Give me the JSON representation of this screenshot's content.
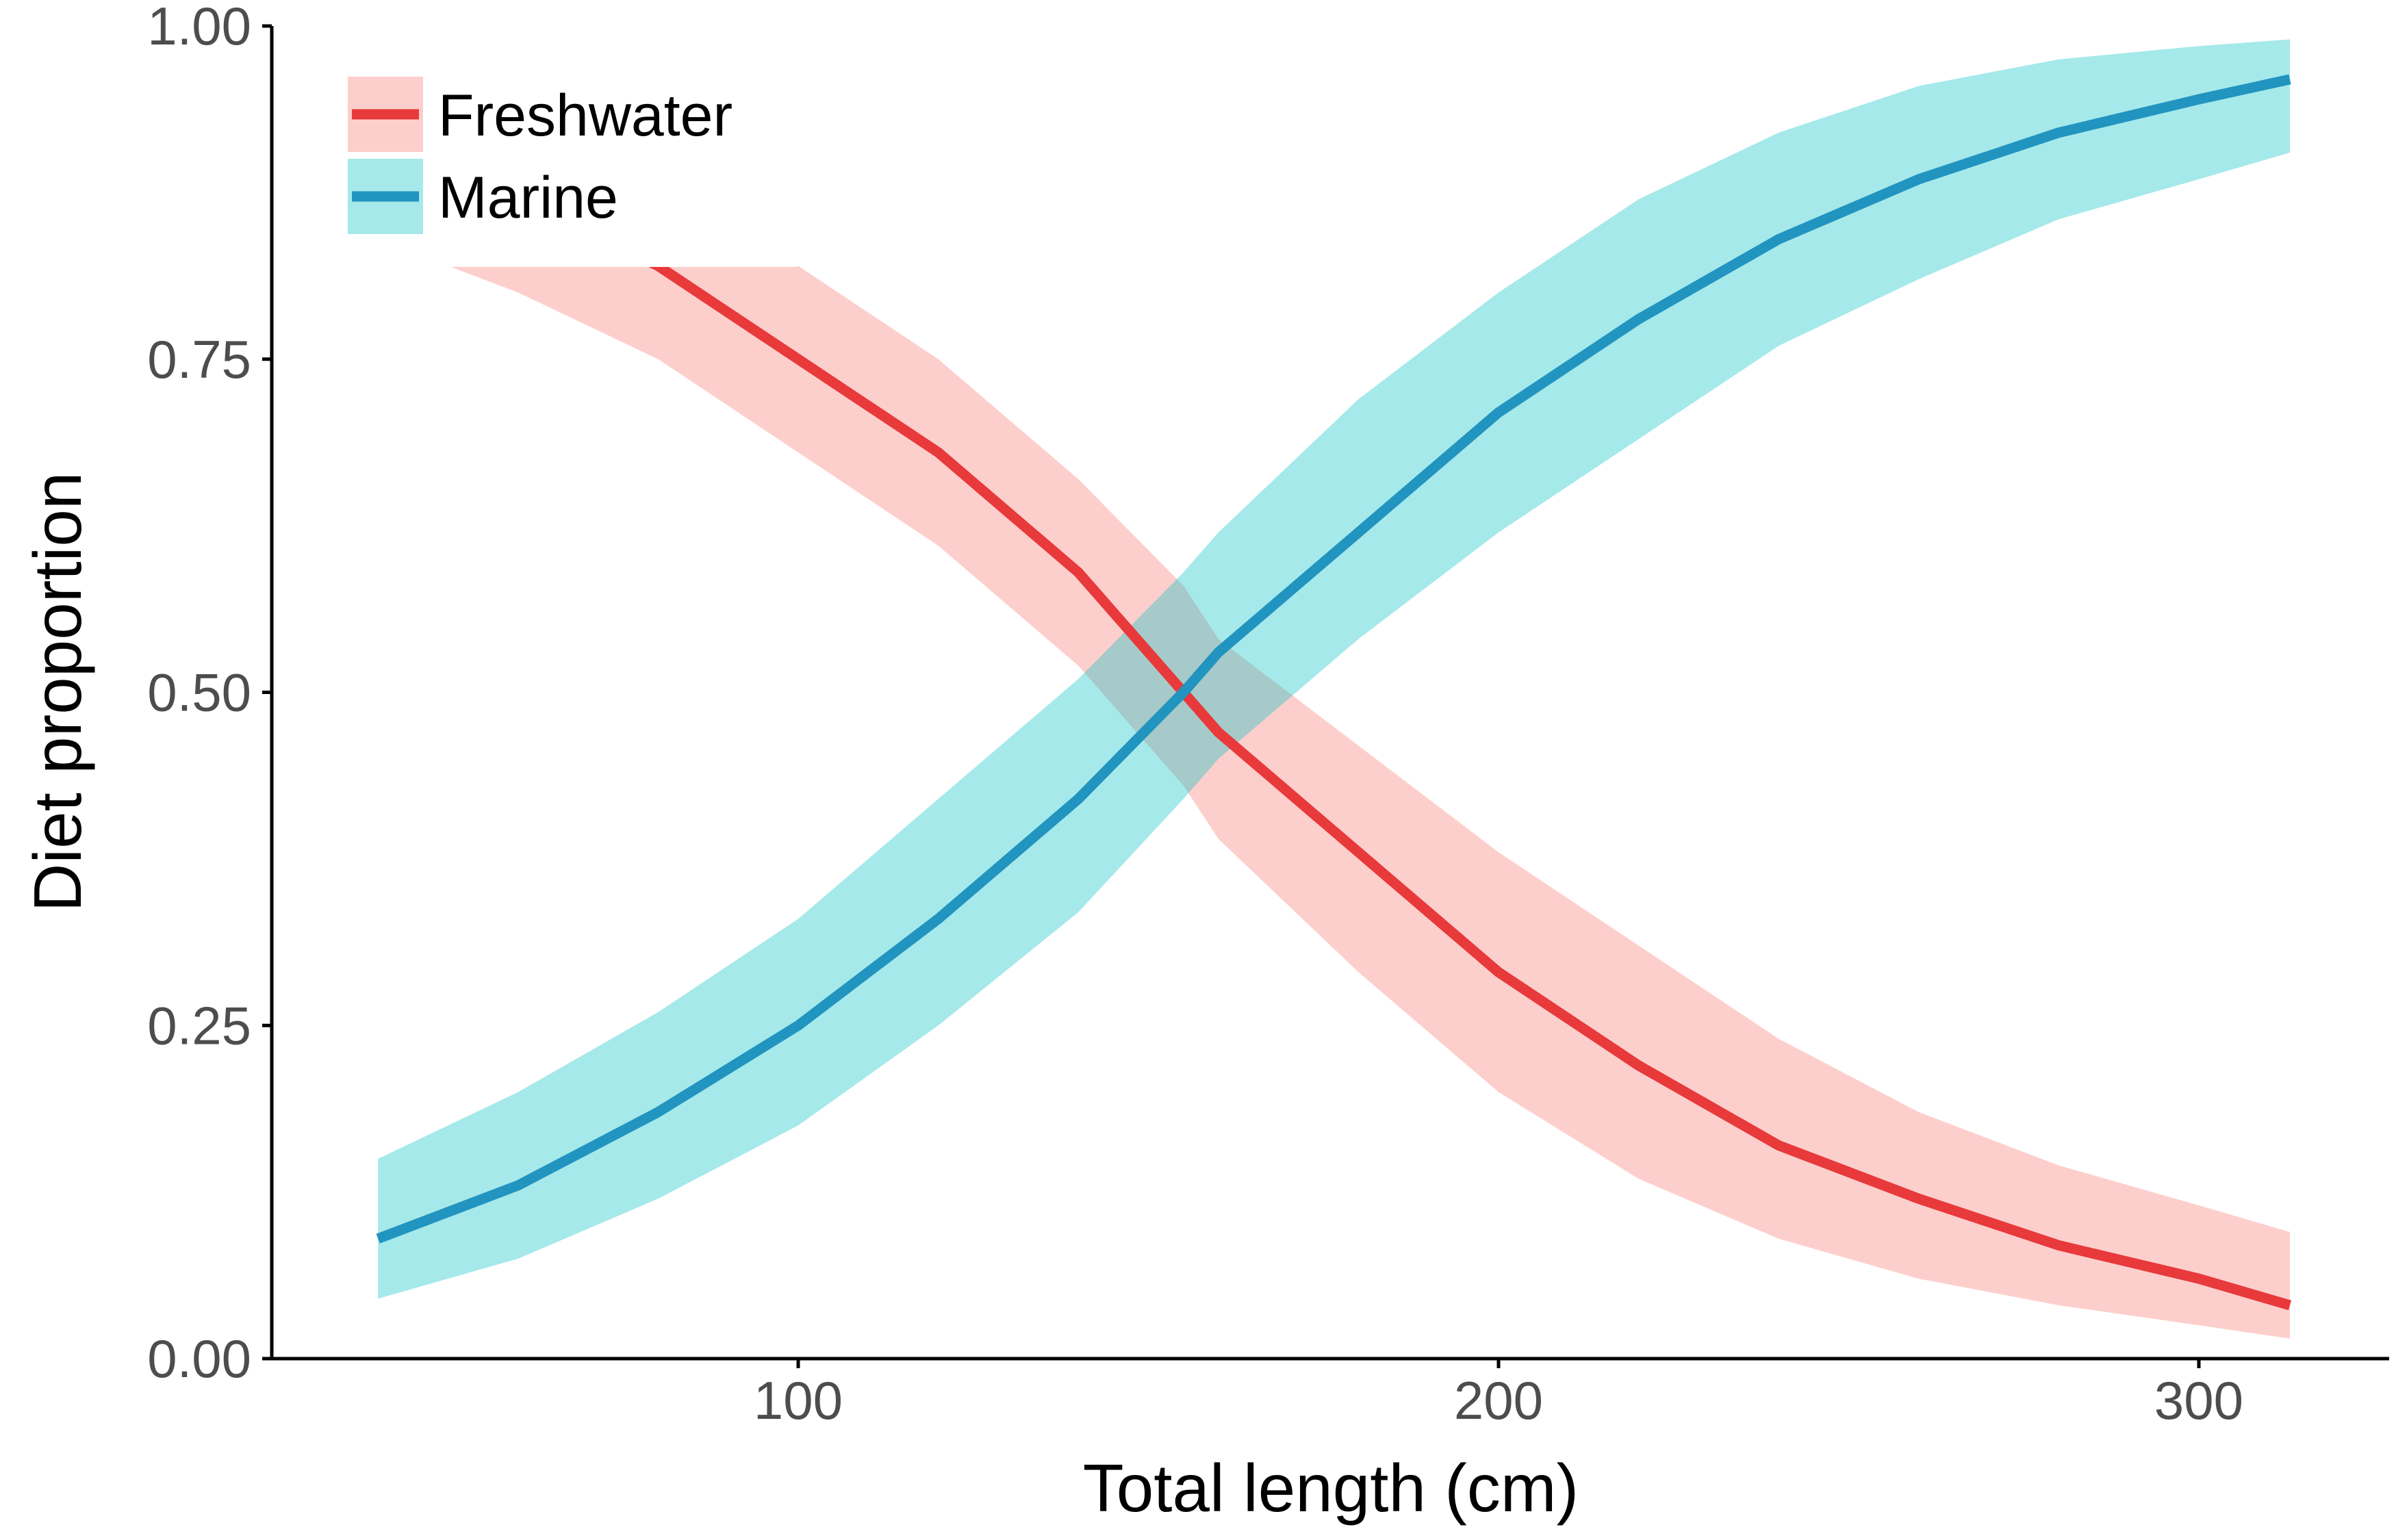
{
  "chart_data": {
    "type": "line",
    "title": "",
    "xlabel": "Total length (cm)",
    "ylabel": "Diet proportion",
    "xlim": [
      25,
      325
    ],
    "ylim": [
      0,
      1
    ],
    "xticks": [
      100,
      200,
      300
    ],
    "xtick_labels": [
      "100",
      "200",
      "300"
    ],
    "yticks": [
      0,
      0.25,
      0.5,
      0.75,
      1
    ],
    "ytick_labels": [
      "0.00",
      "0.25",
      "0.50",
      "0.75",
      "1.00"
    ],
    "grid": false,
    "legend_position": "top-left",
    "series": [
      {
        "name": "Freshwater",
        "color": "#e8393b",
        "band_color": "#f8766d",
        "x": [
          40,
          60,
          80,
          100,
          120,
          140,
          155,
          160,
          180,
          200,
          220,
          240,
          260,
          280,
          300,
          313
        ],
        "y": [
          0.91,
          0.87,
          0.82,
          0.75,
          0.68,
          0.59,
          0.5,
          0.47,
          0.38,
          0.29,
          0.22,
          0.16,
          0.12,
          0.085,
          0.06,
          0.04
        ],
        "lower": [
          0.84,
          0.8,
          0.75,
          0.68,
          0.61,
          0.52,
          0.43,
          0.39,
          0.29,
          0.2,
          0.135,
          0.09,
          0.06,
          0.04,
          0.025,
          0.015
        ],
        "upper": [
          0.95,
          0.93,
          0.89,
          0.82,
          0.75,
          0.66,
          0.58,
          0.54,
          0.46,
          0.38,
          0.31,
          0.24,
          0.185,
          0.145,
          0.115,
          0.095
        ]
      },
      {
        "name": "Marine",
        "color": "#2194c0",
        "band_color": "#00bfc4",
        "x": [
          40,
          60,
          80,
          100,
          120,
          140,
          155,
          160,
          180,
          200,
          220,
          240,
          260,
          280,
          300,
          313
        ],
        "y": [
          0.09,
          0.13,
          0.185,
          0.25,
          0.33,
          0.42,
          0.5,
          0.53,
          0.62,
          0.71,
          0.78,
          0.84,
          0.885,
          0.92,
          0.945,
          0.96
        ],
        "lower": [
          0.045,
          0.075,
          0.12,
          0.175,
          0.25,
          0.335,
          0.42,
          0.45,
          0.54,
          0.62,
          0.69,
          0.76,
          0.81,
          0.855,
          0.885,
          0.905
        ],
        "upper": [
          0.15,
          0.2,
          0.26,
          0.33,
          0.42,
          0.51,
          0.59,
          0.62,
          0.72,
          0.8,
          0.87,
          0.92,
          0.955,
          0.975,
          0.985,
          0.99
        ]
      }
    ]
  }
}
